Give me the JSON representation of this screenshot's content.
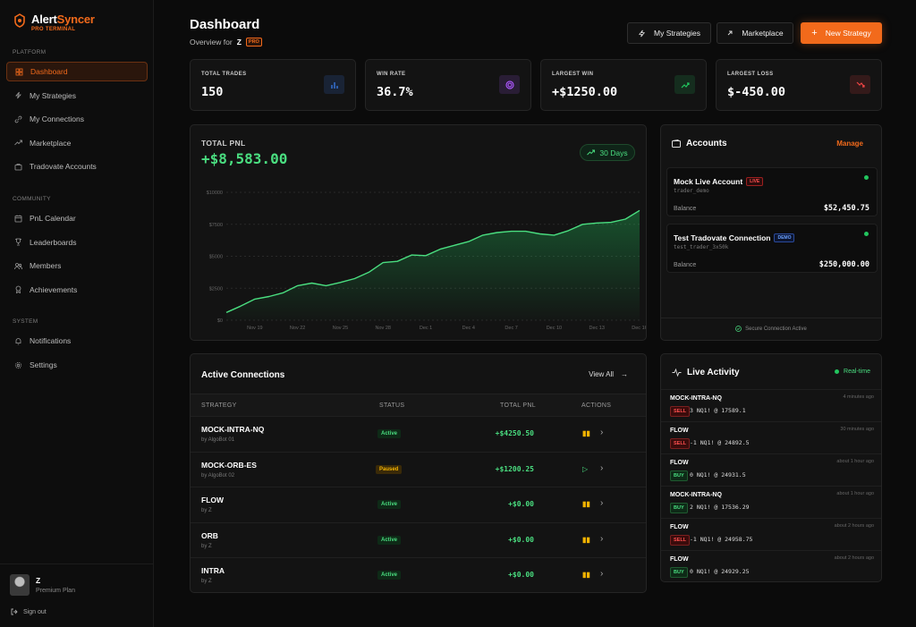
{
  "brand": {
    "name_a": "Alert",
    "name_b": "Syncer",
    "sub": "PRO TERMINAL",
    "accent": "#f26a1b"
  },
  "sidebar": {
    "sections": [
      {
        "label": "PLATFORM",
        "items": [
          {
            "label": "Dashboard",
            "icon": "dashboard-icon",
            "active": true
          },
          {
            "label": "My Strategies",
            "icon": "zap-icon"
          },
          {
            "label": "My Connections",
            "icon": "link-icon"
          },
          {
            "label": "Marketplace",
            "icon": "trending-icon"
          },
          {
            "label": "Tradovate Accounts",
            "icon": "briefcase-icon"
          }
        ]
      },
      {
        "label": "COMMUNITY",
        "items": [
          {
            "label": "PnL Calendar",
            "icon": "calendar-icon"
          },
          {
            "label": "Leaderboards",
            "icon": "trophy-icon"
          },
          {
            "label": "Members",
            "icon": "users-icon"
          },
          {
            "label": "Achievements",
            "icon": "award-icon"
          }
        ]
      },
      {
        "label": "SYSTEM",
        "items": [
          {
            "label": "Notifications",
            "icon": "bell-icon"
          },
          {
            "label": "Settings",
            "icon": "gear-icon"
          }
        ]
      }
    ],
    "user": {
      "name": "Z",
      "plan": "Premium Plan"
    },
    "signout": "Sign out"
  },
  "header": {
    "title": "Dashboard",
    "overview": "Overview for",
    "user": "Z",
    "badge": "PRO",
    "buttons": {
      "strategies": "My Strategies",
      "marketplace": "Marketplace",
      "new": "New Strategy"
    }
  },
  "stats": [
    {
      "label": "TOTAL TRADES",
      "value": "150",
      "icon": "bar-chart-icon",
      "color": "#3b82f6"
    },
    {
      "label": "WIN RATE",
      "value": "36.7%",
      "icon": "target-icon",
      "color": "#a855f7"
    },
    {
      "label": "LARGEST WIN",
      "value": "+$1250.00",
      "icon": "trending-up-icon",
      "color": "#22c55e"
    },
    {
      "label": "LARGEST LOSS",
      "value": "$-450.00",
      "icon": "trending-down-icon",
      "color": "#ef4444"
    }
  ],
  "pnl": {
    "label": "TOTAL PNL",
    "value": "+$8,583.00",
    "range": "30 Days"
  },
  "chart_data": {
    "type": "area",
    "x": [
      "Nov 17",
      "Nov 18",
      "Nov 19",
      "Nov 20",
      "Nov 21",
      "Nov 22",
      "Nov 23",
      "Nov 24",
      "Nov 25",
      "Nov 26",
      "Nov 27",
      "Nov 28",
      "Nov 29",
      "Nov 30",
      "Dec 1",
      "Dec 2",
      "Dec 3",
      "Dec 4",
      "Dec 5",
      "Dec 6",
      "Dec 7",
      "Dec 8",
      "Dec 9",
      "Dec 10",
      "Dec 11",
      "Dec 12",
      "Dec 13",
      "Dec 14",
      "Dec 15",
      "Dec 16"
    ],
    "x_ticks": [
      "Nov 19",
      "Nov 22",
      "Nov 25",
      "Nov 28",
      "Dec 1",
      "Dec 4",
      "Dec 7",
      "Dec 10",
      "Dec 13",
      "Dec 16"
    ],
    "values": [
      600,
      1100,
      1650,
      1850,
      2150,
      2700,
      2900,
      2700,
      2950,
      3250,
      3750,
      4500,
      4600,
      5100,
      5050,
      5550,
      5850,
      6150,
      6650,
      6850,
      6950,
      6950,
      6750,
      6650,
      7000,
      7500,
      7600,
      7650,
      7900,
      8583
    ],
    "y_ticks": [
      "$0",
      "$2500",
      "$5000",
      "$7500",
      "$10000"
    ],
    "ylim": [
      0,
      10000
    ],
    "color": "#4ade80",
    "grid": true
  },
  "accounts": {
    "title": "Accounts",
    "manage": "Manage",
    "footer": "Secure Connection Active",
    "items": [
      {
        "name": "Mock Live Account",
        "tag": "LIVE",
        "id": "trader_demo",
        "balance_label": "Balance",
        "balance": "$52,450.75"
      },
      {
        "name": "Test Tradovate Connection",
        "tag": "DEMO",
        "id": "test_trader_3x50k",
        "balance_label": "Balance",
        "balance": "$250,000.00"
      }
    ]
  },
  "connections": {
    "title": "Active Connections",
    "view_all": "View All",
    "headers": [
      "STRATEGY",
      "STATUS",
      "TOTAL PNL",
      "ACTIONS"
    ],
    "rows": [
      {
        "strategy": "MOCK-INTRA-NQ",
        "by": "by AlgoBot 01",
        "status": "Active",
        "pnl": "+$4250.50",
        "action": "pause"
      },
      {
        "strategy": "MOCK-ORB-ES",
        "by": "by AlgoBot 02",
        "status": "Paused",
        "pnl": "+$1200.25",
        "action": "play"
      },
      {
        "strategy": "FLOW",
        "by": "by Z",
        "status": "Active",
        "pnl": "+$0.00",
        "action": "pause"
      },
      {
        "strategy": "ORB",
        "by": "by Z",
        "status": "Active",
        "pnl": "+$0.00",
        "action": "pause"
      },
      {
        "strategy": "INTRA",
        "by": "by Z",
        "status": "Active",
        "pnl": "+$0.00",
        "action": "pause"
      }
    ]
  },
  "activity": {
    "title": "Live Activity",
    "status": "Real-time",
    "items": [
      {
        "name": "MOCK-INTRA-NQ",
        "time": "4 minutes ago",
        "side": "SELL",
        "detail": "3 NQ1! @ 17589.1"
      },
      {
        "name": "FLOW",
        "time": "30 minutes ago",
        "side": "SELL",
        "detail": "-1 NQ1! @ 24892.5"
      },
      {
        "name": "FLOW",
        "time": "about 1 hour ago",
        "side": "BUY",
        "detail": "0 NQ1! @ 24931.5"
      },
      {
        "name": "MOCK-INTRA-NQ",
        "time": "about 1 hour ago",
        "side": "BUY",
        "detail": "2 NQ1! @ 17536.29"
      },
      {
        "name": "FLOW",
        "time": "about 2 hours ago",
        "side": "SELL",
        "detail": "-1 NQ1! @ 24958.75"
      },
      {
        "name": "FLOW",
        "time": "about 2 hours ago",
        "side": "BUY",
        "detail": "0 NQ1! @ 24929.25"
      }
    ]
  }
}
